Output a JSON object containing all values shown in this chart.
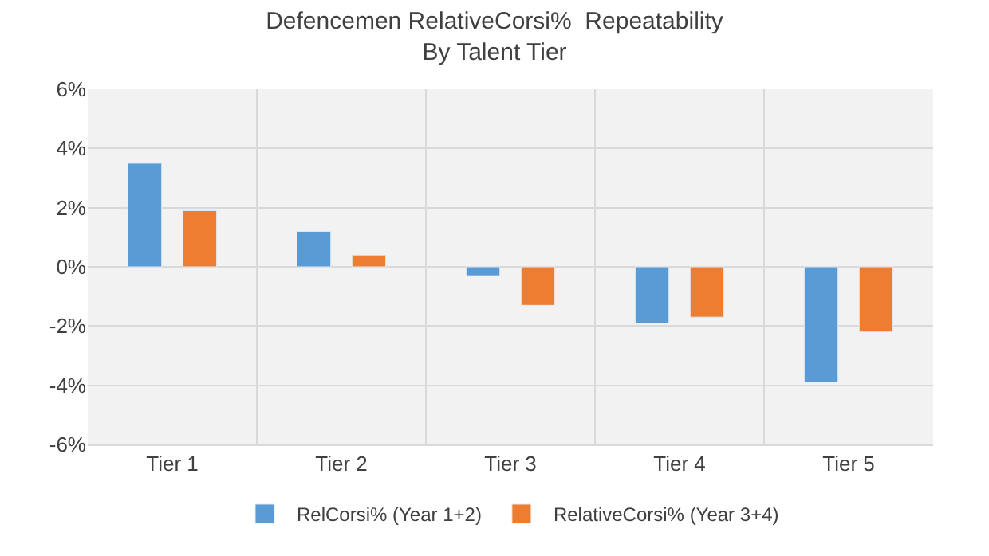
{
  "chart_data": {
    "type": "bar",
    "title": "Defencemen RelativeCorsi%  Repeatability\nBy Talent Tier",
    "categories": [
      "Tier 1",
      "Tier 2",
      "Tier 3",
      "Tier 4",
      "Tier 5"
    ],
    "series": [
      {
        "name": "RelCorsi% (Year 1+2)",
        "color": "#5b9bd5",
        "values": [
          3.5,
          1.2,
          -0.3,
          -1.9,
          -3.9
        ]
      },
      {
        "name": "RelativeCorsi% (Year 3+4)",
        "color": "#ed7d31",
        "values": [
          1.9,
          0.4,
          -1.3,
          -1.7,
          -2.2
        ]
      }
    ],
    "ylim": [
      -6,
      6
    ],
    "yticks": [
      {
        "value": -6,
        "label": "-6%"
      },
      {
        "value": -4,
        "label": "-4%"
      },
      {
        "value": -2,
        "label": "-2%"
      },
      {
        "value": 0,
        "label": "0%"
      },
      {
        "value": 2,
        "label": "2%"
      },
      {
        "value": 4,
        "label": "4%"
      },
      {
        "value": 6,
        "label": "6%"
      }
    ],
    "grid": true,
    "legend": "bottom"
  }
}
